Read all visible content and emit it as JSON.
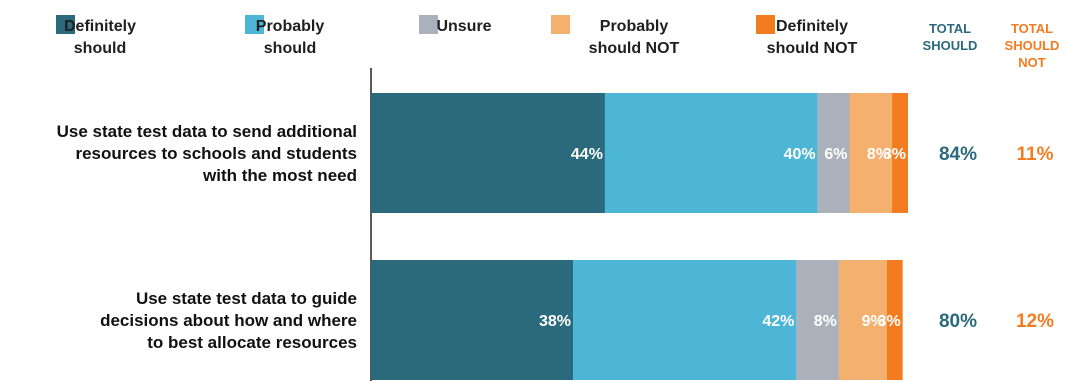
{
  "chart_data": {
    "type": "bar",
    "orientation": "horizontal",
    "stacked": true,
    "legend_position": "top",
    "grid": false,
    "categories": [
      "Use state test data to send additional resources to schools and students with the most need",
      "Use state test data to guide decisions about how and where to best allocate resources"
    ],
    "category_lines": [
      [
        "Use state test data to send additional",
        "resources to schools and students",
        "with the most need"
      ],
      [
        "Use state test data to guide",
        "decisions about how and where",
        "to best allocate resources"
      ]
    ],
    "series": [
      {
        "name": "Definitely should",
        "legend_lines": [
          "Definitely",
          "should"
        ],
        "color": "#2b6a7c",
        "values": [
          44,
          38
        ],
        "labels": [
          "44%",
          "38%"
        ]
      },
      {
        "name": "Probably should",
        "legend_lines": [
          "Probably",
          "should"
        ],
        "color": "#4db5d6",
        "values": [
          40,
          42
        ],
        "labels": [
          "40%",
          "42%"
        ]
      },
      {
        "name": "Unsure",
        "legend_lines": [
          "Unsure"
        ],
        "color": "#aab1ba",
        "values": [
          6,
          8
        ],
        "labels": [
          "6%",
          "8%"
        ]
      },
      {
        "name": "Probably should NOT",
        "legend_lines": [
          "Probably",
          "should NOT"
        ],
        "color": "#f3b06e",
        "values": [
          8,
          9
        ],
        "labels": [
          "8%",
          "9%"
        ]
      },
      {
        "name": "Definitely should NOT",
        "legend_lines": [
          "Definitely",
          "should NOT"
        ],
        "color": "#f47c20",
        "values": [
          3,
          3
        ],
        "labels": [
          "3%",
          "3%"
        ]
      }
    ],
    "totals": [
      {
        "header_lines": [
          "TOTAL",
          "SHOULD"
        ],
        "color": "#2b6a7c",
        "values": [
          "84%",
          "80%"
        ]
      },
      {
        "header_lines": [
          "TOTAL",
          "SHOULD",
          "NOT"
        ],
        "color": "#f47c20",
        "values": [
          "11%",
          "12%"
        ]
      }
    ],
    "xlim": [
      0,
      101
    ]
  }
}
